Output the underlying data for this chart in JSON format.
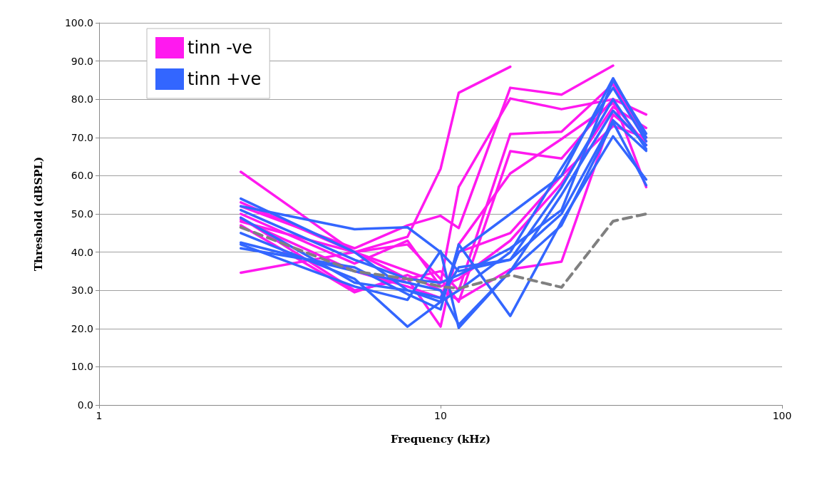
{
  "chart_data": {
    "type": "line",
    "xlabel": "Frequency (kHz)",
    "ylabel": "Threshold (dBSPL)",
    "x": [
      2.6,
      5.6,
      8,
      10,
      11.3,
      16,
      22.6,
      32,
      40
    ],
    "log": "x",
    "xlim": [
      1,
      100
    ],
    "xticks": [
      1,
      10,
      100
    ],
    "ylim": [
      0,
      100
    ],
    "yticks": [
      {
        "value": 0,
        "label": "0.0"
      },
      {
        "value": 10,
        "label": "10.0"
      },
      {
        "value": 20,
        "label": "20.0"
      },
      {
        "value": 30,
        "label": "30.0"
      },
      {
        "value": 40,
        "label": "40.0"
      },
      {
        "value": 50,
        "label": "50.0"
      },
      {
        "value": 60,
        "label": "60.0"
      },
      {
        "value": 70,
        "label": "70.0"
      },
      {
        "value": 80,
        "label": "80.0"
      },
      {
        "value": 90,
        "label": "90.0"
      },
      {
        "value": 100,
        "label": "100.0"
      }
    ],
    "grid": "y",
    "legend": "top left",
    "marker": "none",
    "line_style": "solid",
    "series": [
      {
        "name": "tinn -ve",
        "color": "#ff19ef",
        "values": [
          48,
          40,
          44,
          61.8,
          81.7,
          88.5,
          null,
          null,
          null
        ]
      },
      {
        "color": "#ff19ef",
        "values": [
          52,
          41,
          47,
          49.5,
          46.3,
          83,
          81.2,
          88.8,
          null
        ]
      },
      {
        "color": "#ff19ef",
        "values": [
          53,
          40,
          35,
          32,
          57,
          80.2,
          77.4,
          80,
          76
        ]
      },
      {
        "color": "#ff19ef",
        "values": [
          61,
          40,
          33,
          35,
          30,
          70.9,
          71.5,
          84,
          70
        ]
      },
      {
        "color": "#ff19ef",
        "values": [
          34.6,
          40,
          42,
          33,
          27,
          66.4,
          64.5,
          80,
          57
        ]
      },
      {
        "color": "#ff19ef",
        "values": [
          49,
          30,
          33,
          20.5,
          42,
          60.6,
          69.6,
          79,
          68
        ]
      },
      {
        "color": "#ff19ef",
        "values": [
          47,
          29.5,
          34,
          30,
          27.5,
          35.5,
          37.5,
          76,
          69
        ]
      },
      {
        "color": "#ff19ef",
        "values": [
          48.5,
          35,
          31,
          28,
          40,
          45,
          60,
          73,
          70
        ]
      },
      {
        "color": "#ff19ef",
        "values": [
          50,
          37,
          43,
          31,
          33,
          43,
          58,
          78,
          72.5
        ]
      },
      {
        "name": "tinn +ve",
        "color": "#3366ff",
        "values": [
          54,
          40,
          30,
          27,
          40,
          50,
          60,
          85.5,
          70
        ]
      },
      {
        "color": "#3366ff",
        "values": [
          52,
          46,
          46.5,
          40,
          35,
          38,
          50,
          74.5,
          66.5
        ]
      },
      {
        "color": "#3366ff",
        "values": [
          45,
          33,
          20.5,
          27,
          30,
          40,
          62,
          83,
          69
        ]
      },
      {
        "color": "#3366ff",
        "values": [
          42,
          31,
          27.5,
          40.3,
          20.2,
          35,
          55,
          77,
          68
        ]
      },
      {
        "color": "#3366ff",
        "values": [
          41,
          36,
          29,
          25,
          42,
          23.3,
          48,
          70.3,
          59
        ]
      },
      {
        "color": "#3366ff",
        "values": [
          42.5,
          35,
          32,
          30,
          21,
          35,
          47,
          74,
          57.5
        ]
      },
      {
        "color": "#3366ff",
        "values": [
          51,
          38,
          33,
          32,
          34,
          41,
          51,
          85,
          71
        ]
      },
      {
        "color": "#3366ff",
        "values": [
          49,
          32,
          30,
          28,
          36,
          38,
          57,
          80,
          67
        ]
      },
      {
        "color": "#808080",
        "line_style": "dashed",
        "values": [
          46.5,
          35,
          33,
          31,
          30.5,
          34,
          30.8,
          48.1,
          50
        ]
      }
    ]
  }
}
